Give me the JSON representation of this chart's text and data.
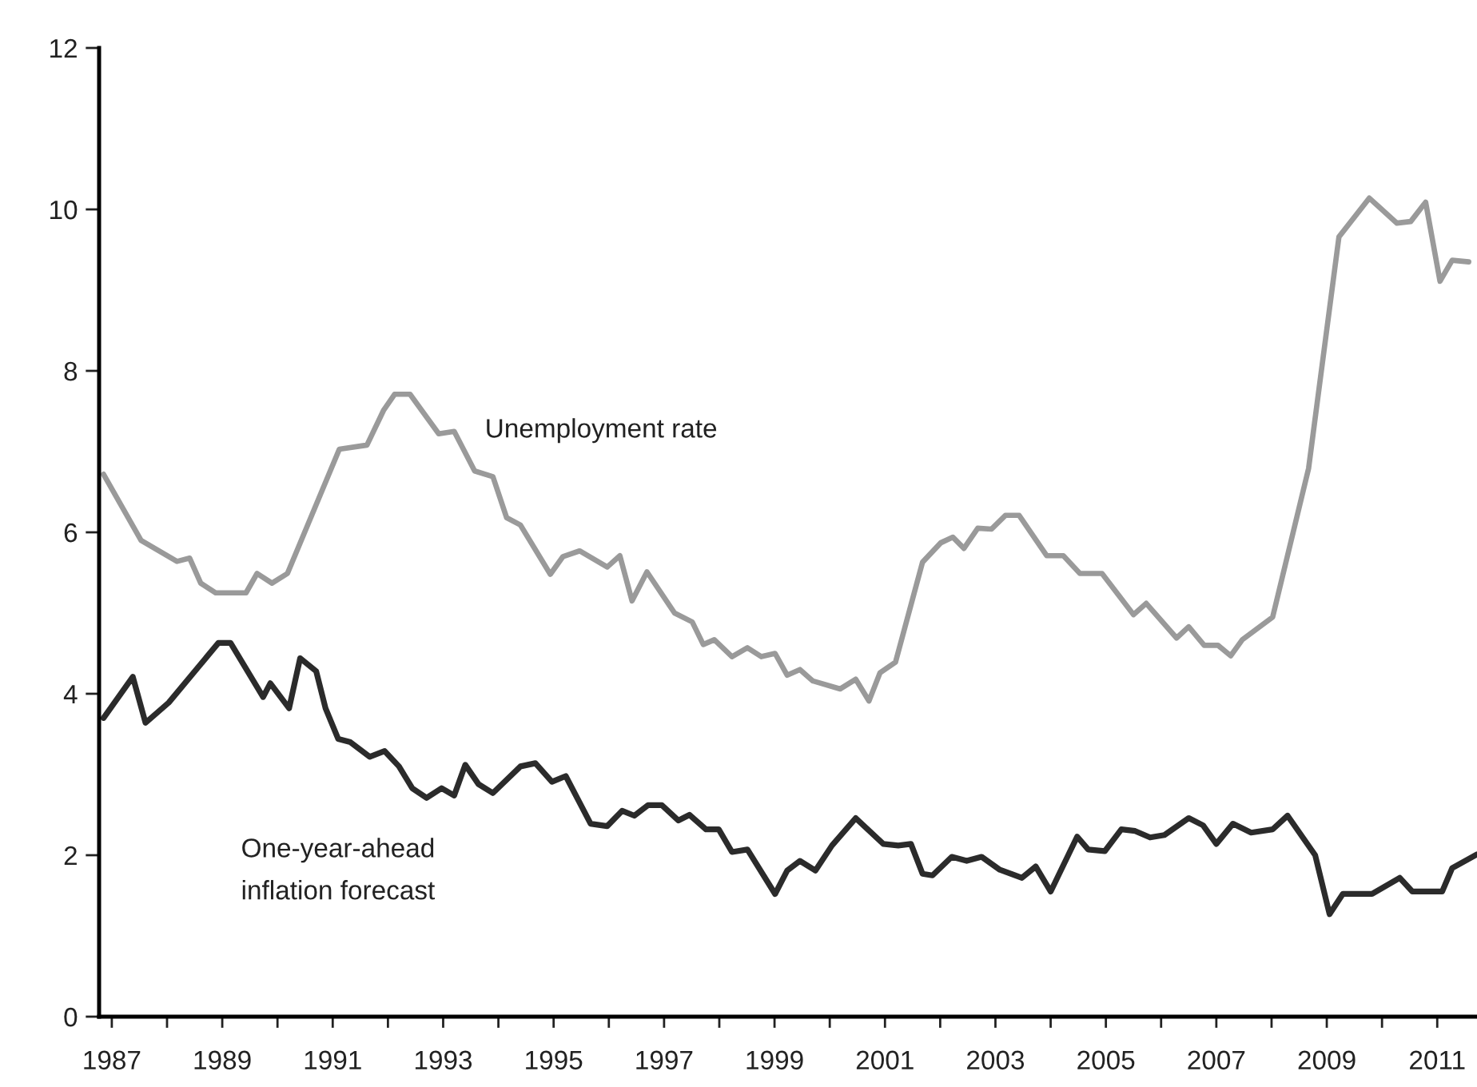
{
  "chart_data": {
    "type": "line",
    "xlim": [
      1986.77,
      2011.72
    ],
    "xticks": [
      1987,
      {
        "value": 1988,
        "label": null
      },
      1989,
      {
        "value": 1990,
        "label": null
      },
      1991,
      {
        "value": 1992,
        "label": null
      },
      1993,
      {
        "value": 1994,
        "label": null
      },
      1995,
      {
        "value": 1996,
        "label": null
      },
      1997,
      {
        "value": 1998,
        "label": null
      },
      1999,
      {
        "value": 2000,
        "label": null
      },
      2001,
      {
        "value": 2002,
        "label": null
      },
      2003,
      {
        "value": 2004,
        "label": null
      },
      2005,
      {
        "value": 2006,
        "label": null
      },
      2007,
      {
        "value": 2008,
        "label": null
      },
      2009,
      {
        "value": 2010,
        "label": null
      },
      2011
    ],
    "ylim": [
      0,
      12
    ],
    "yticks": [
      0,
      2,
      4,
      6,
      8,
      10,
      12
    ],
    "grid": false,
    "legend": false,
    "marker": "none",
    "line_style": "solid",
    "series": [
      {
        "name": "Unemployment rate",
        "color": "#9a9a9a",
        "x": [
          1986.85,
          1987.53,
          1988.18,
          1988.41,
          1988.61,
          1988.88,
          1989.43,
          1989.63,
          1989.9,
          1990.18,
          1991.12,
          1991.62,
          1991.92,
          1992.12,
          1992.4,
          1992.92,
          1993.2,
          1993.57,
          1993.9,
          1994.15,
          1994.4,
          1994.94,
          1995.17,
          1995.47,
          1995.97,
          1996.2,
          1996.42,
          1996.69,
          1997.19,
          1997.51,
          1997.71,
          1997.91,
          1998.23,
          1998.51,
          1998.76,
          1999.01,
          1999.23,
          1999.46,
          1999.69,
          2000.19,
          2000.47,
          2000.71,
          2000.91,
          2001.19,
          2001.68,
          2002.01,
          2002.23,
          2002.43,
          2002.68,
          2002.93,
          2003.18,
          2003.43,
          2003.93,
          2004.23,
          2004.53,
          2004.93,
          2005.5,
          2005.73,
          2006.28,
          2006.5,
          2006.78,
          2007.03,
          2007.26,
          2007.47,
          2008.02,
          2008.67,
          2009.22,
          2009.77,
          2010.27,
          2010.52,
          2010.79,
          2011.05,
          2011.27,
          2011.57
        ],
        "values": [
          6.72,
          5.9,
          5.64,
          5.68,
          5.37,
          5.25,
          5.25,
          5.49,
          5.37,
          5.49,
          7.03,
          7.08,
          7.51,
          7.71,
          7.71,
          7.22,
          7.25,
          6.76,
          6.69,
          6.18,
          6.09,
          5.48,
          5.7,
          5.77,
          5.57,
          5.71,
          5.15,
          5.51,
          5.0,
          4.89,
          4.61,
          4.67,
          4.46,
          4.57,
          4.46,
          4.5,
          4.23,
          4.3,
          4.16,
          4.06,
          4.18,
          3.91,
          4.26,
          4.39,
          5.63,
          5.87,
          5.94,
          5.8,
          6.05,
          6.04,
          6.21,
          6.21,
          5.71,
          5.71,
          5.49,
          5.49,
          4.98,
          5.12,
          4.69,
          4.83,
          4.6,
          4.6,
          4.47,
          4.67,
          4.95,
          6.79,
          9.66,
          10.14,
          9.83,
          9.85,
          10.09,
          9.11,
          9.37,
          9.35
        ]
      },
      {
        "name": "One-year-ahead\ninflation forecast",
        "color": "#2b2b2b",
        "x": [
          1986.85,
          1987.38,
          1987.61,
          1988.03,
          1988.93,
          1989.15,
          1989.74,
          1989.87,
          1990.21,
          1990.41,
          1990.7,
          1990.87,
          1991.1,
          1991.32,
          1991.67,
          1991.94,
          1992.2,
          1992.44,
          1992.7,
          1992.97,
          1993.2,
          1993.4,
          1993.64,
          1993.9,
          1994.4,
          1994.67,
          1994.97,
          1995.22,
          1995.67,
          1995.97,
          1996.24,
          1996.46,
          1996.71,
          1996.96,
          1997.26,
          1997.46,
          1997.76,
          1997.99,
          1998.23,
          1998.51,
          1999.01,
          1999.23,
          1999.46,
          1999.74,
          2000.04,
          2000.47,
          2000.97,
          2001.24,
          2001.47,
          2001.68,
          2001.86,
          2002.21,
          2002.48,
          2002.75,
          2003.08,
          2003.48,
          2003.73,
          2004.0,
          2004.48,
          2004.68,
          2004.98,
          2005.28,
          2005.53,
          2005.8,
          2006.06,
          2006.5,
          2006.76,
          2007.0,
          2007.3,
          2007.63,
          2008.02,
          2008.29,
          2008.79,
          2009.05,
          2009.29,
          2009.82,
          2010.32,
          2010.55,
          2011.09,
          2011.27,
          2011.72
        ],
        "values": [
          3.7,
          4.21,
          3.64,
          3.89,
          4.63,
          4.63,
          3.96,
          4.13,
          3.82,
          4.44,
          4.28,
          3.82,
          3.44,
          3.4,
          3.22,
          3.29,
          3.1,
          2.83,
          2.71,
          2.83,
          2.74,
          3.12,
          2.88,
          2.77,
          3.1,
          3.14,
          2.91,
          2.98,
          2.39,
          2.36,
          2.55,
          2.49,
          2.62,
          2.62,
          2.43,
          2.5,
          2.32,
          2.32,
          2.04,
          2.07,
          1.52,
          1.81,
          1.93,
          1.81,
          2.12,
          2.46,
          2.14,
          2.12,
          2.14,
          1.77,
          1.75,
          1.98,
          1.93,
          1.98,
          1.82,
          1.72,
          1.86,
          1.55,
          2.23,
          2.07,
          2.05,
          2.32,
          2.3,
          2.22,
          2.25,
          2.46,
          2.37,
          2.14,
          2.39,
          2.28,
          2.32,
          2.49,
          2.0,
          1.27,
          1.52,
          1.52,
          1.72,
          1.55,
          1.55,
          1.84,
          2.01
        ]
      }
    ]
  }
}
